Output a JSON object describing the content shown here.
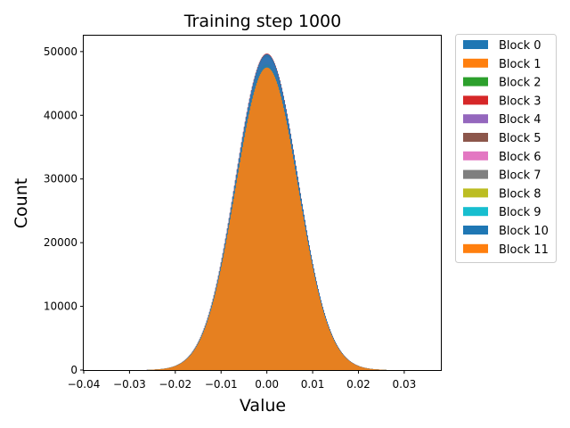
{
  "chart_data": {
    "type": "histogram",
    "title": "Training step 1000",
    "xlabel": "Value",
    "ylabel": "Count",
    "xlim": [
      -0.04,
      0.038
    ],
    "ylim": [
      0,
      52500
    ],
    "x_ticks": [
      "−0.04",
      "−0.03",
      "−0.02",
      "−0.01",
      "0.00",
      "0.01",
      "0.02",
      "0.03"
    ],
    "x_tick_values": [
      -0.04,
      -0.03,
      -0.02,
      -0.01,
      0.0,
      0.01,
      0.02,
      0.03
    ],
    "y_ticks": [
      "0",
      "10000",
      "20000",
      "30000",
      "40000",
      "50000"
    ],
    "y_tick_values": [
      0,
      10000,
      20000,
      30000,
      40000,
      50000
    ],
    "grid": false,
    "legend_placement": "outside-right-top",
    "distribution": {
      "shape": "gaussian",
      "mean": 0.0,
      "std": 0.0068,
      "range": [
        -0.027,
        0.027
      ],
      "peak_count": 47500
    },
    "series": [
      {
        "name": "Block 0",
        "color": "#1f77b4",
        "peak_count": 49500
      },
      {
        "name": "Block 1",
        "color": "#ff7f0e",
        "peak_count": 47300
      },
      {
        "name": "Block 2",
        "color": "#2ca02c",
        "peak_count": 47800
      },
      {
        "name": "Block 3",
        "color": "#d62728",
        "peak_count": 49700
      },
      {
        "name": "Block 4",
        "color": "#9467bd",
        "peak_count": 49200
      },
      {
        "name": "Block 5",
        "color": "#8c564b",
        "peak_count": 48400
      },
      {
        "name": "Block 6",
        "color": "#e377c2",
        "peak_count": 49100
      },
      {
        "name": "Block 7",
        "color": "#7f7f7f",
        "peak_count": 48000
      },
      {
        "name": "Block 8",
        "color": "#bcbd22",
        "peak_count": 47900
      },
      {
        "name": "Block 9",
        "color": "#17becf",
        "peak_count": 47700
      },
      {
        "name": "Block 10",
        "color": "#1f77b4",
        "peak_count": 49600
      },
      {
        "name": "Block 11",
        "color": "#ff7f0e",
        "peak_count": 47500
      }
    ]
  }
}
